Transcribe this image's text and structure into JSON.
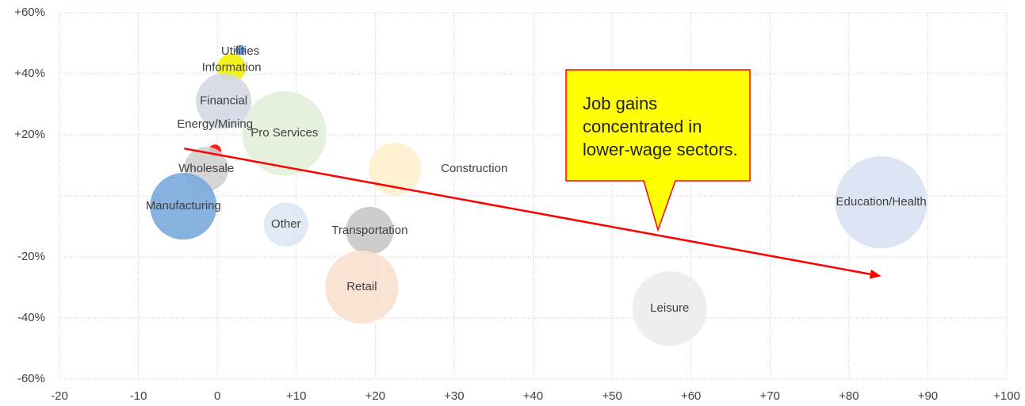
{
  "chart_data": {
    "type": "bubble",
    "xlim": [
      -20,
      100
    ],
    "ylim": [
      -60,
      60
    ],
    "xticks": [
      -20,
      -10,
      0,
      {
        "value": 10,
        "label": "+10"
      },
      {
        "value": 20,
        "label": "+20"
      },
      {
        "value": 30,
        "label": "+30"
      },
      {
        "value": 40,
        "label": "+40"
      },
      {
        "value": 50,
        "label": "+50"
      },
      {
        "value": 60,
        "label": "+60"
      },
      {
        "value": 70,
        "label": "+70"
      },
      {
        "value": 80,
        "label": "+80"
      },
      {
        "value": 90,
        "label": "+90"
      },
      {
        "value": 100,
        "label": "+100"
      }
    ],
    "yticks": [
      {
        "value": -60,
        "label": "-60%"
      },
      {
        "value": -40,
        "label": "-40%"
      },
      {
        "value": -20,
        "label": "-20%"
      },
      {
        "value": 20,
        "label": "+20%"
      },
      {
        "value": 40,
        "label": "+40%"
      },
      {
        "value": 60,
        "label": "+60%"
      }
    ],
    "y_unlabeled_ticks": [
      0
    ],
    "grid": true,
    "labels": [
      "Utilities",
      "Information",
      "Financial",
      "Pro Services",
      "Energy/Mining",
      "Wholesale",
      "Manufacturing",
      "Other",
      "Transportation",
      "Retail",
      "Construction",
      "Leisure",
      "Education/Health"
    ],
    "x": [
      2.9,
      1.8,
      0.8,
      8.5,
      -0.3,
      -1.4,
      -4.3,
      8.7,
      19.3,
      18.3,
      22.5,
      57.3,
      84.1
    ],
    "y": [
      47.8,
      42,
      31,
      20.5,
      14.8,
      8.8,
      -3.4,
      -9.4,
      -11.4,
      -29.9,
      8.8,
      -36.9,
      -2.1
    ],
    "sizes": [
      4,
      32,
      122,
      281,
      6,
      78,
      176,
      78,
      90,
      212,
      109,
      221,
      336
    ],
    "colors": [
      "#5b8fd0",
      "#f2f20a",
      "#d3d8e3",
      "#e2efd9",
      "#ff0000",
      "#d0d0d0",
      "#7aa9dc",
      "#dde8f4",
      "#c8c8c8",
      "#fbe0cf",
      "#fff0cc",
      "#ececec",
      "#d9e2f3"
    ],
    "arrow": {
      "x": [
        -4.2,
        84.1
      ],
      "y": [
        15.5,
        -26.3
      ],
      "color": "#ff0000"
    },
    "annotation": {
      "lines": [
        "Job gains",
        "concentrated in",
        "lower-wage sectors."
      ]
    }
  }
}
